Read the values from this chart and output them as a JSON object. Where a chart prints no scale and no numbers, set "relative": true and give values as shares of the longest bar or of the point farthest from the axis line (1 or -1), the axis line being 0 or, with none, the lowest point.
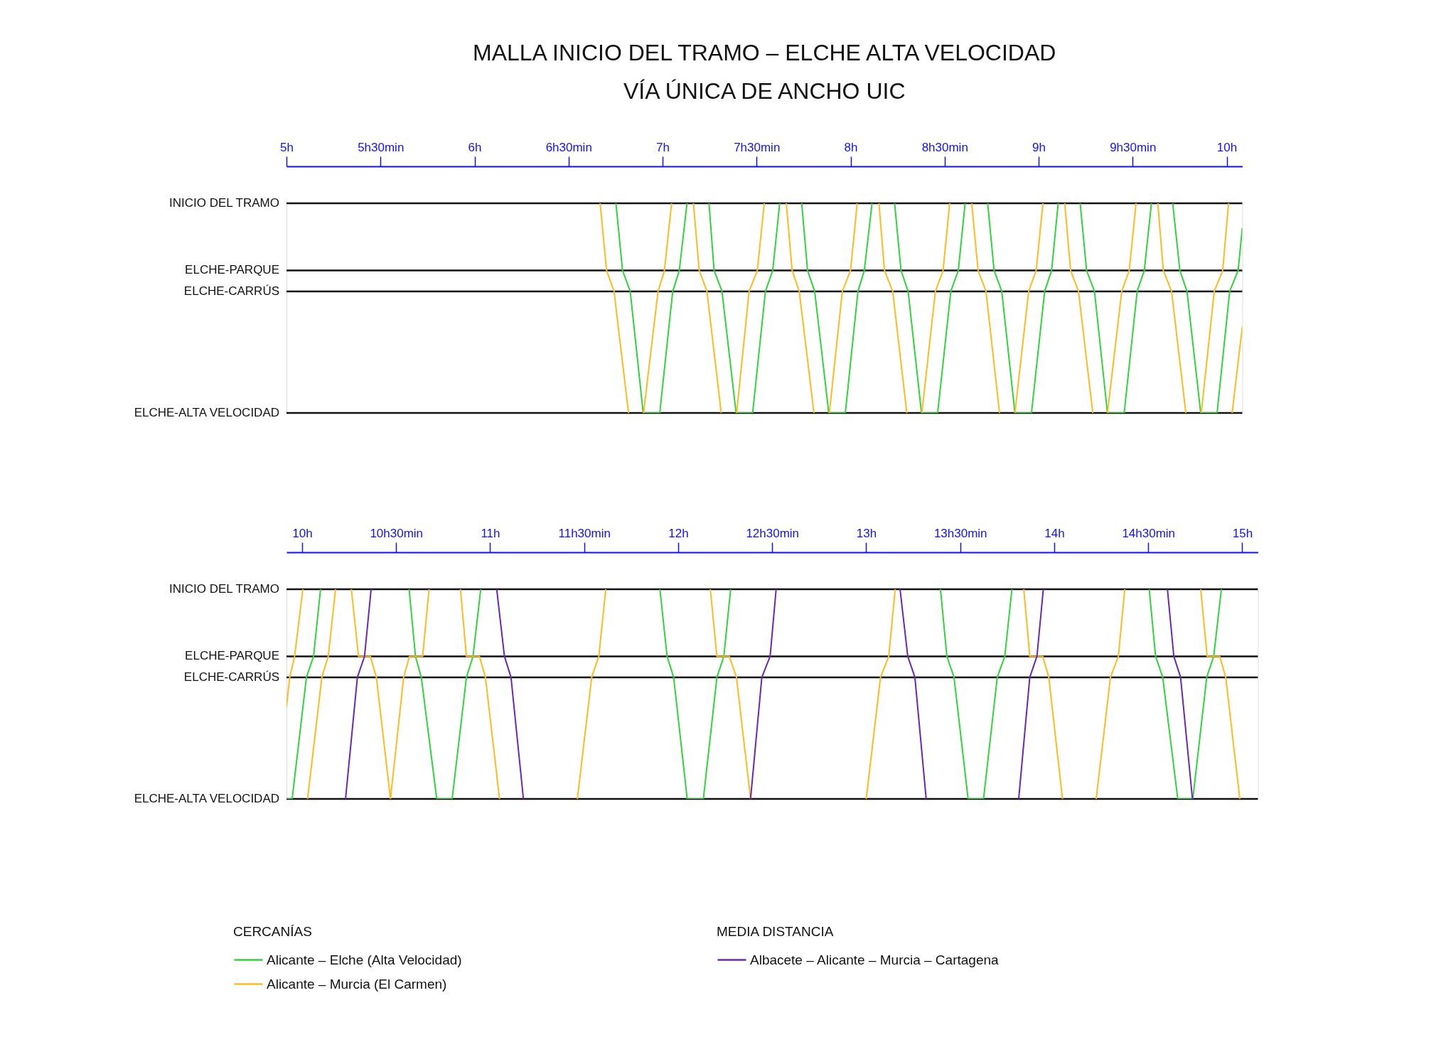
{
  "chart_data": [
    {
      "type": "line",
      "title": "MALLA INICIO DEL TRAMO – ELCHE ALTA VELOCIDAD",
      "subtitle": "VÍA ÚNICA DE ANCHO UIC",
      "relative": true,
      "xlim": [
        5,
        10.083
      ],
      "xticks": [
        {
          "value": 5,
          "label": "5h"
        },
        {
          "value": 5.5,
          "label": "5h30min"
        },
        {
          "value": 6,
          "label": "6h"
        },
        {
          "value": 6.5,
          "label": "6h30min"
        },
        {
          "value": 7,
          "label": "7h"
        },
        {
          "value": 7.5,
          "label": "7h30min"
        },
        {
          "value": 8,
          "label": "8h"
        },
        {
          "value": 8.5,
          "label": "8h30min"
        },
        {
          "value": 9,
          "label": "9h"
        },
        {
          "value": 9.5,
          "label": "9h30min"
        },
        {
          "value": 10,
          "label": "10h"
        }
      ],
      "ref_lines": [
        {
          "axis": "y",
          "value": 1,
          "label": "INICIO DEL TRAMO"
        },
        {
          "axis": "y",
          "value": 0.68,
          "label": "ELCHE-PARQUE"
        },
        {
          "axis": "y",
          "value": 0.58,
          "label": "ELCHE-CARRÚS"
        },
        {
          "axis": "y",
          "value": 0,
          "label": "ELCHE-ALTA VELOCIDAD"
        }
      ],
      "series": [
        {
          "color": "#2fd43a",
          "x": [
            6.752,
            6.787,
            6.828,
            6.897,
            6.985,
            7.054,
            7.089,
            7.13,
            null,
            7.247,
            7.274,
            7.316,
            7.391,
            7.479,
            7.547,
            7.586,
            7.623,
            null,
            7.74,
            7.771,
            7.809,
            7.884,
            7.972,
            8.039,
            8.073,
            8.114,
            null,
            8.234,
            8.268,
            8.306,
            8.377,
            8.463,
            8.533,
            8.573,
            8.609,
            null,
            8.729,
            8.763,
            8.804,
            8.874,
            8.962,
            9.032,
            9.069,
            9.104,
            null,
            9.221,
            9.255,
            9.297,
            9.366,
            9.455,
            9.524,
            9.562,
            9.6,
            null,
            9.713,
            9.751,
            9.789,
            9.862,
            9.949,
            10.016,
            10.061,
            10.083
          ],
          "values": [
            1,
            0.68,
            0.58,
            0,
            0,
            0.58,
            0.68,
            1,
            null,
            1,
            0.68,
            0.58,
            0,
            0,
            0.58,
            0.68,
            1,
            null,
            1,
            0.68,
            0.58,
            0,
            0,
            0.58,
            0.68,
            1,
            null,
            1,
            0.68,
            0.58,
            0,
            0,
            0.58,
            0.68,
            1,
            null,
            1,
            0.68,
            0.58,
            0,
            0,
            0.58,
            0.68,
            1,
            null,
            1,
            0.68,
            0.58,
            0,
            0,
            0.58,
            0.68,
            1,
            null,
            1,
            0.68,
            0.58,
            0,
            0,
            0.58,
            0.68,
            0.88
          ]
        },
        {
          "color": "#ffba1f",
          "x": [
            6.668,
            6.702,
            6.742,
            6.819,
            null,
            6.899,
            6.976,
            7.01,
            7.048,
            null,
            7.164,
            7.195,
            7.236,
            7.312,
            null,
            7.394,
            7.46,
            7.504,
            7.541,
            null,
            7.658,
            7.689,
            7.727,
            7.805,
            null,
            7.887,
            7.956,
            8,
            8.035,
            null,
            8.151,
            8.18,
            8.224,
            8.299,
            null,
            8.379,
            8.451,
            8.492,
            8.527,
            null,
            8.644,
            8.678,
            8.72,
            8.792,
            null,
            8.874,
            8.947,
            8.987,
            9.023,
            null,
            9.139,
            9.17,
            9.212,
            9.288,
            null,
            9.366,
            9.442,
            9.482,
            9.518,
            null,
            9.634,
            9.663,
            9.707,
            9.783,
            null,
            9.865,
            9.934,
            9.979,
            10.01,
            null,
            10.029,
            10.083
          ],
          "values": [
            1,
            0.68,
            0.58,
            0,
            null,
            0,
            0.58,
            0.68,
            1,
            null,
            1,
            0.68,
            0.58,
            0,
            null,
            0,
            0.58,
            0.68,
            1,
            null,
            1,
            0.68,
            0.58,
            0,
            null,
            0,
            0.58,
            0.68,
            1,
            null,
            1,
            0.68,
            0.58,
            0,
            null,
            0,
            0.58,
            0.68,
            1,
            null,
            1,
            0.68,
            0.58,
            0,
            null,
            0,
            0.58,
            0.68,
            1,
            null,
            1,
            0.68,
            0.58,
            0,
            null,
            0,
            0.58,
            0.68,
            1,
            null,
            1,
            0.68,
            0.58,
            0,
            null,
            0,
            0.58,
            0.68,
            1,
            null,
            0,
            0.41
          ]
        }
      ]
    },
    {
      "type": "line",
      "relative": true,
      "xlim": [
        9.917,
        15.083
      ],
      "legend": "bottom",
      "legend_title": "CERCANÍAS",
      "annotations": [
        "MEDIA DISTANCIA"
      ],
      "xticks": [
        {
          "value": 10,
          "label": "10h"
        },
        {
          "value": 10.5,
          "label": "10h30min"
        },
        {
          "value": 11,
          "label": "11h"
        },
        {
          "value": 11.5,
          "label": "11h30min"
        },
        {
          "value": 12,
          "label": "12h"
        },
        {
          "value": 12.5,
          "label": "12h30min"
        },
        {
          "value": 13,
          "label": "13h"
        },
        {
          "value": 13.5,
          "label": "13h30min"
        },
        {
          "value": 14,
          "label": "14h"
        },
        {
          "value": 14.5,
          "label": "14h30min"
        },
        {
          "value": 15,
          "label": "15h"
        }
      ],
      "ref_lines": [
        {
          "axis": "y",
          "value": 1,
          "label": "INICIO DEL TRAMO"
        },
        {
          "axis": "y",
          "value": 0.68,
          "label": "ELCHE-PARQUE"
        },
        {
          "axis": "y",
          "value": 0.58,
          "label": "ELCHE-CARRÚS"
        },
        {
          "axis": "y",
          "value": 0,
          "label": "ELCHE-ALTA VELOCIDAD"
        }
      ],
      "series": [
        {
          "name": "Alicante – Elche (Alta Velocidad)",
          "color": "#2fd43a",
          "x": [
            9.917,
            9.947,
            10.023,
            10.061,
            10.098,
            null,
            10.569,
            10.603,
            10.634,
            10.716,
            10.798,
            10.874,
            10.909,
            10.95,
            null,
            11.903,
            11.941,
            11.976,
            12.048,
            12.134,
            12.206,
            12.243,
            12.279,
            null,
            13.395,
            13.429,
            13.467,
            13.542,
            13.624,
            13.697,
            13.737,
            13.775,
            null,
            14.505,
            14.539,
            14.577,
            14.657,
            14.737,
            14.811,
            14.848,
            14.889
          ],
          "values": [
            0,
            0,
            0.58,
            0.68,
            1,
            null,
            1,
            0.68,
            0.58,
            0,
            0,
            0.58,
            0.68,
            1,
            null,
            1,
            0.68,
            0.58,
            0,
            0,
            0.58,
            0.68,
            1,
            null,
            1,
            0.68,
            0.58,
            0,
            0,
            0.58,
            0.68,
            1,
            null,
            1,
            0.68,
            0.58,
            0,
            0,
            0.58,
            0.68,
            1
          ]
        },
        {
          "name": "Alicante – Murcia (El Carmen)",
          "color": "#ffba1f",
          "x": [
            9.917,
            9.934,
            9.96,
            10.004,
            null,
            10.029,
            10.105,
            10.139,
            10.178,
            null,
            10.262,
            10.3,
            10.363,
            10.395,
            10.47,
            null,
            10.47,
            10.54,
            10.571,
            10.641,
            10.675,
            null,
            10.842,
            10.874,
            10.943,
            10.975,
            11.05,
            null,
            11.464,
            11.54,
            11.578,
            11.615,
            null,
            12.171,
            12.206,
            12.272,
            12.31,
            12.385,
            null,
            13,
            13.076,
            13.12,
            13.154,
            null,
            13.838,
            13.87,
            13.939,
            13.971,
            14.044,
            null,
            14.223,
            14.299,
            14.341,
            14.375,
            null,
            14.779,
            14.813,
            14.88,
            14.912,
            14.987
          ],
          "values": [
            0.44,
            0.58,
            0.68,
            1,
            null,
            0,
            0.58,
            0.68,
            1,
            null,
            1,
            0.68,
            0.68,
            0.58,
            0,
            null,
            0,
            0.58,
            0.68,
            0.68,
            1,
            null,
            1,
            0.68,
            0.68,
            0.58,
            0,
            null,
            0,
            0.58,
            0.68,
            1,
            null,
            1,
            0.68,
            0.68,
            0.58,
            0,
            null,
            0,
            0.58,
            0.68,
            1,
            null,
            1,
            0.68,
            0.68,
            0.58,
            0,
            null,
            0,
            0.58,
            0.68,
            1,
            null,
            1,
            0.68,
            0.68,
            0.58,
            0
          ]
        },
        {
          "name": "Albacete – Alicante – Murcia – Cartagena",
          "color": "#6b26b8",
          "x": [
            10.231,
            10.294,
            10.332,
            10.367,
            null,
            11.035,
            11.076,
            11.111,
            11.177,
            null,
            12.385,
            12.445,
            12.489,
            12.521,
            null,
            13.18,
            13.221,
            13.259,
            13.319,
            null,
            13.811,
            13.87,
            13.908,
            13.942,
            null,
            14.602,
            14.636,
            14.672,
            14.735
          ],
          "values": [
            0,
            0.58,
            0.68,
            1,
            null,
            1,
            0.68,
            0.58,
            0,
            null,
            0,
            0.58,
            0.68,
            1,
            null,
            1,
            0.68,
            0.58,
            0,
            null,
            0,
            0.58,
            0.68,
            1,
            null,
            1,
            0.68,
            0.58,
            0
          ]
        }
      ]
    }
  ]
}
